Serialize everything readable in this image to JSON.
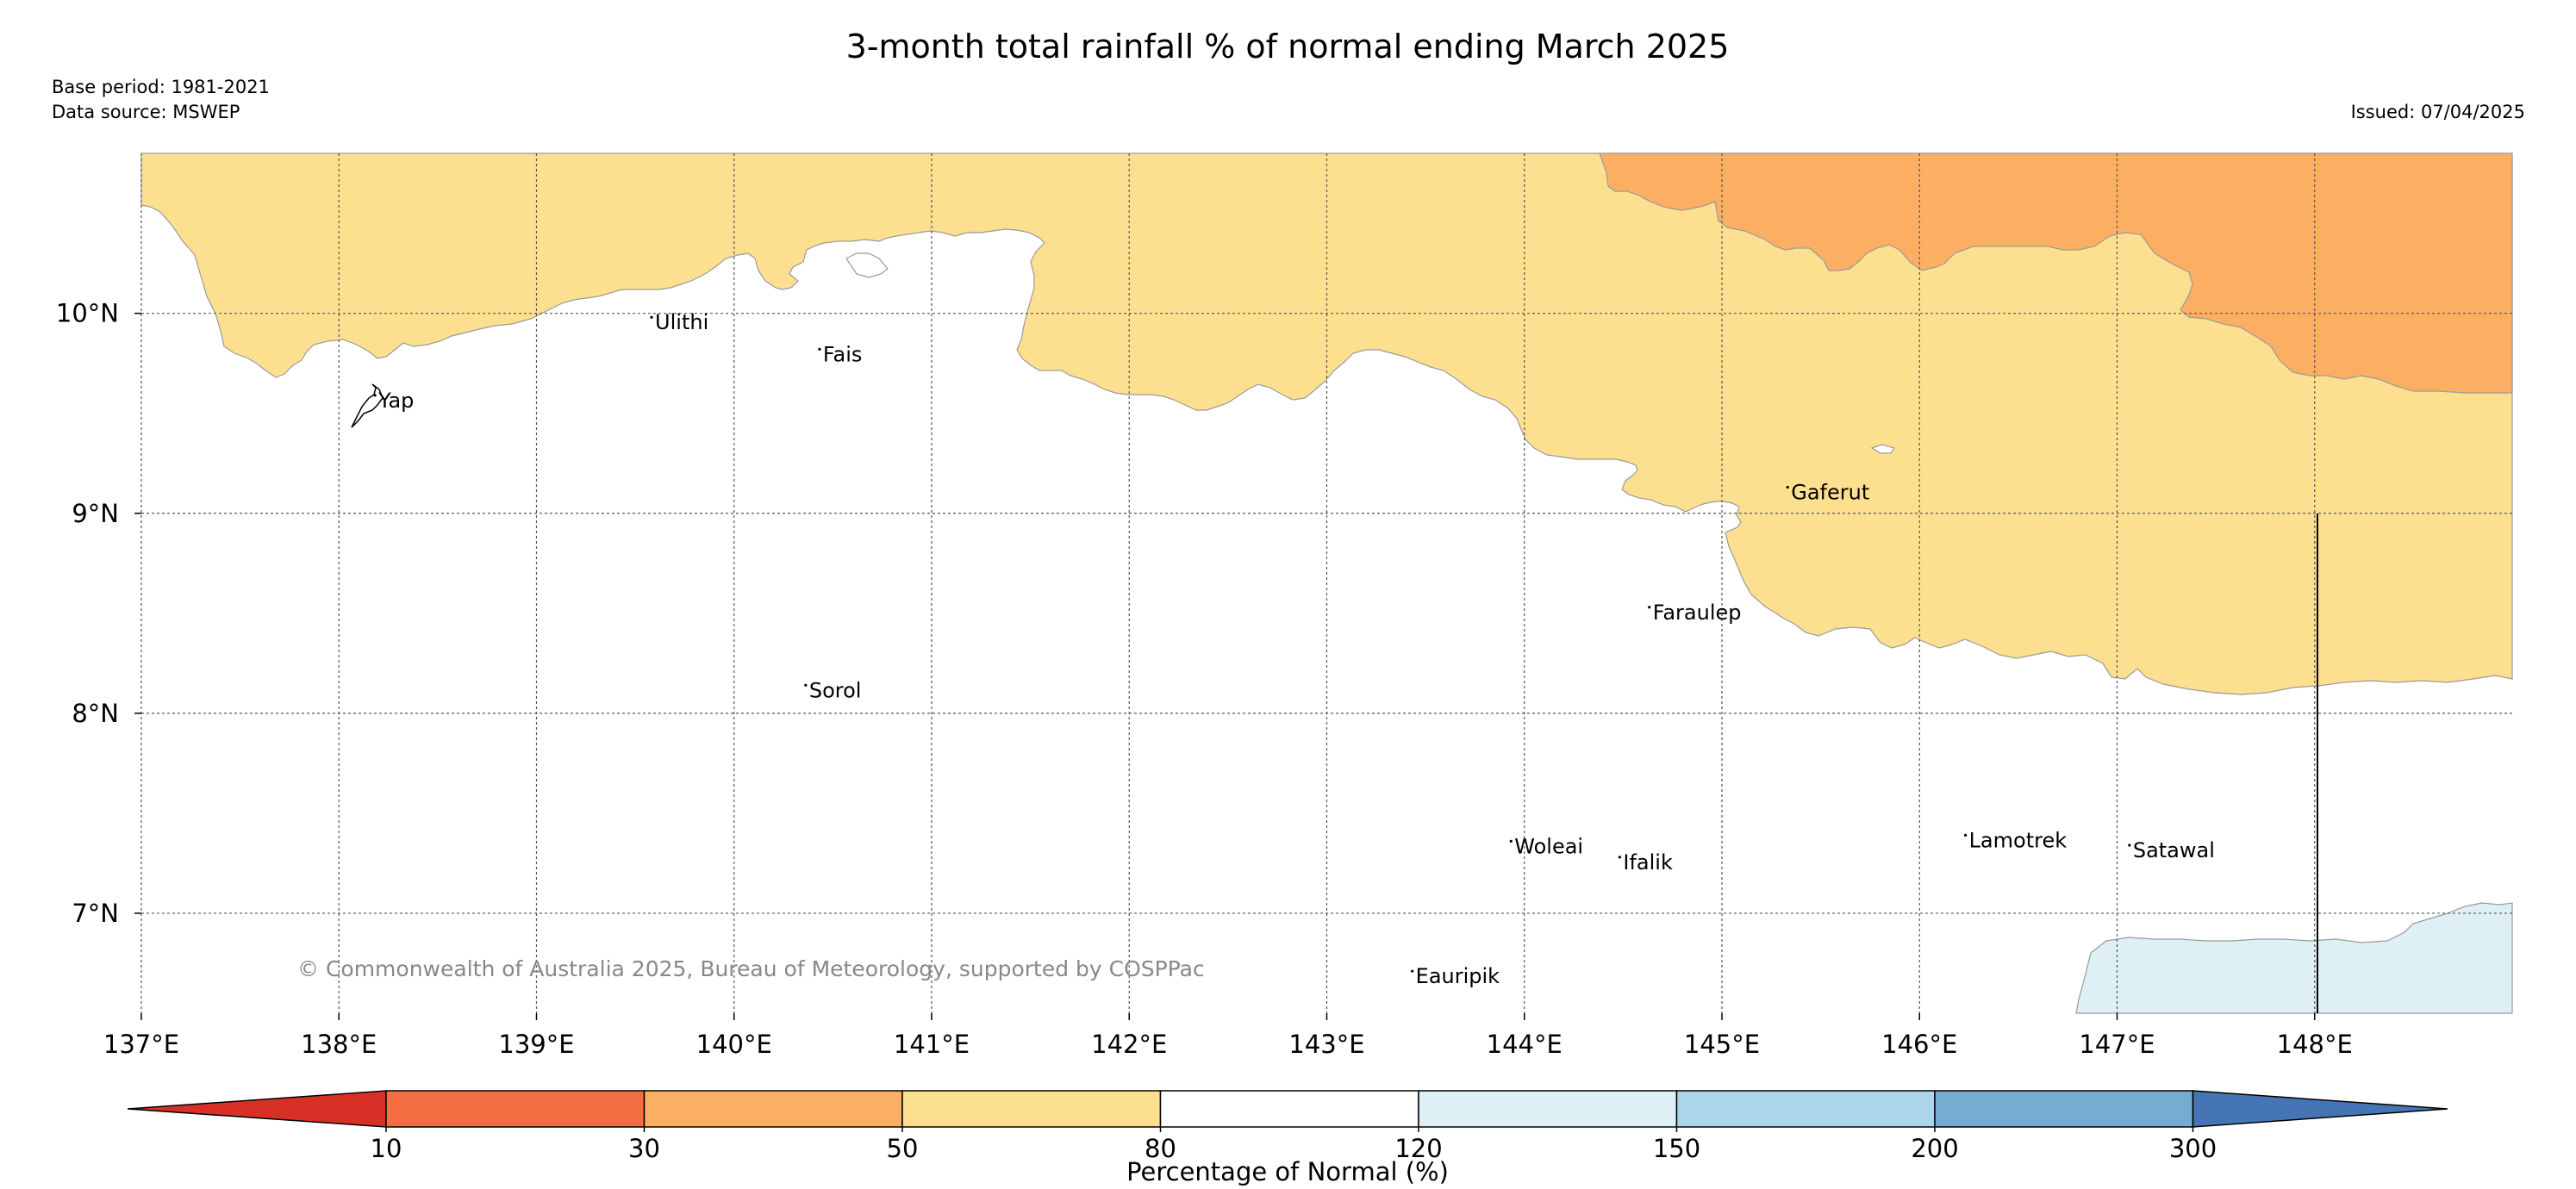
{
  "header": {
    "title": "3-month total rainfall % of normal ending March 2025",
    "base_period": "Base period: 1981-2021",
    "data_source": "Data source: MSWEP",
    "issued": "Issued: 07/04/2025"
  },
  "map": {
    "lon_range": [
      137,
      149
    ],
    "lat_range": [
      6.5,
      10.8
    ],
    "lon_ticks": [
      "137°E",
      "138°E",
      "139°E",
      "140°E",
      "141°E",
      "142°E",
      "143°E",
      "144°E",
      "145°E",
      "146°E",
      "147°E",
      "148°E"
    ],
    "lat_ticks": [
      "10°N",
      "9°N",
      "8°N",
      "7°N"
    ],
    "colors": {
      "r50_80": "#fde08f",
      "r30_50": "#fcaf62",
      "r120_150": "#def0f6",
      "boundary": "#9a9a9a"
    },
    "places": [
      {
        "name": "Yap",
        "lon": 138.2,
        "lat": 9.53
      },
      {
        "name": "Ulithi",
        "lon": 139.6,
        "lat": 9.92
      },
      {
        "name": "Fais",
        "lon": 140.45,
        "lat": 9.76
      },
      {
        "name": "Gaferut",
        "lon": 145.35,
        "lat": 9.07
      },
      {
        "name": "Faraulep",
        "lon": 144.65,
        "lat": 8.47
      },
      {
        "name": "Sorol",
        "lon": 140.38,
        "lat": 8.08
      },
      {
        "name": "Woleai",
        "lon": 143.95,
        "lat": 7.3
      },
      {
        "name": "Ifalik",
        "lon": 144.5,
        "lat": 7.22
      },
      {
        "name": "Lamotrek",
        "lon": 146.25,
        "lat": 7.33
      },
      {
        "name": "Satawal",
        "lon": 147.08,
        "lat": 7.28
      },
      {
        "name": "Eauripik",
        "lon": 143.45,
        "lat": 6.65
      }
    ],
    "copyright": "© Commonwealth of Australia 2025, Bureau of Meteorology, supported by COSPPac"
  },
  "colorbar": {
    "title": "Percentage of Normal (%)",
    "tick_labels": [
      "10",
      "30",
      "50",
      "80",
      "120",
      "150",
      "200",
      "300"
    ],
    "colors": [
      "#d73027",
      "#f46d43",
      "#fcaf62",
      "#fde08f",
      "#ffffff",
      "#def0f6",
      "#abd6e9",
      "#74add1",
      "#4575b4"
    ]
  }
}
